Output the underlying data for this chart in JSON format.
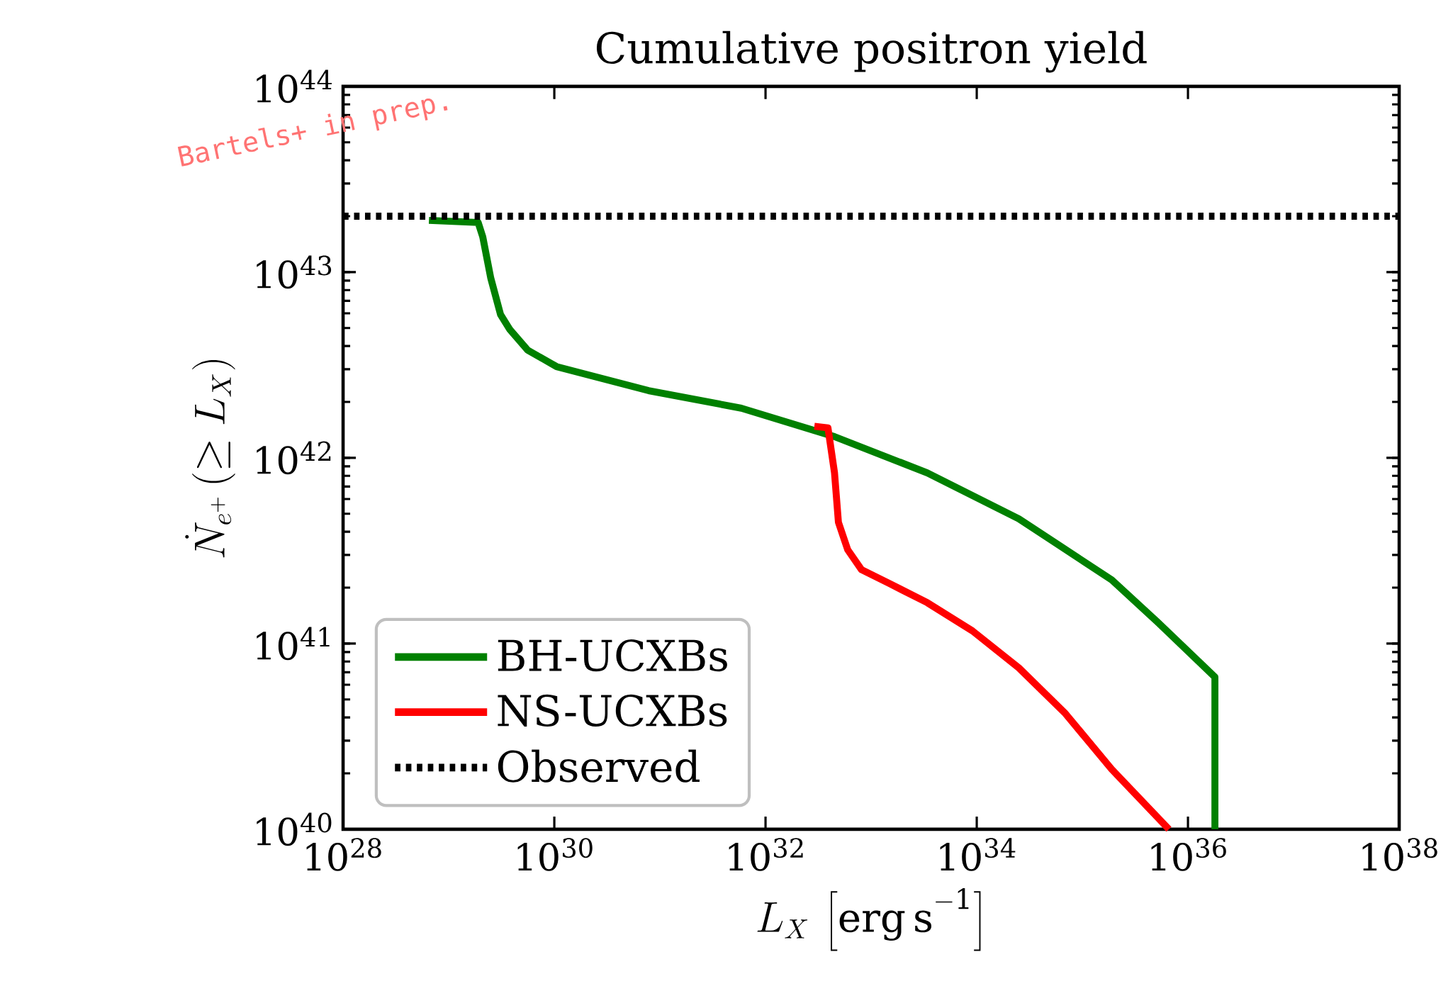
{
  "chart_data": {
    "type": "line",
    "title": "Cumulative positron yield",
    "xlabel": "L_X\\,\\left[\\mathrm{erg\\,s^{-1}}\\right]",
    "ylabel": "\\dot{N}_{e^+}\\,(\\geq L_X)",
    "log": "xy",
    "legend": "bottom left",
    "marker": "none",
    "xlim": [
      1e+28,
      1e+38
    ],
    "ylim": [
      1e+40,
      1e+44
    ],
    "xticks": [
      {
        "value": 1e+28,
        "label": "10$^{28}$"
      },
      {
        "value": 1e+30,
        "label": "10$^{30}$"
      },
      {
        "value": 1e+32,
        "label": "10$^{32}$"
      },
      {
        "value": 1e+34,
        "label": "10$^{34}$"
      },
      {
        "value": 1e+36,
        "label": "10$^{36}$"
      },
      {
        "value": 1e+38,
        "label": "10$^{38}$"
      }
    ],
    "yticks": [
      {
        "value": 1e+40,
        "label": "10$^{40}$"
      },
      {
        "value": 1e+41,
        "label": "10$^{41}$"
      },
      {
        "value": 1e+42,
        "label": "10$^{42}$"
      },
      {
        "value": 1e+43,
        "label": "10$^{43}$"
      },
      {
        "value": 1e+44,
        "label": "10$^{44}$"
      }
    ],
    "annotations": [
      "Bartels+ in prep."
    ],
    "series": [
      {
        "name": "BH-UCXBs",
        "color": "#008000",
        "line_style": "solid",
        "x": [
          6.5e+28,
          1.9e+29,
          2.1e+29,
          2.5e+29,
          3.1e+29,
          3.8e+29,
          5.6e+29,
          1.05e+30,
          7.8e+30,
          5.9e+31,
          4.5e+32,
          3.4e+33,
          2.5e+34,
          1.9e+35,
          5.2e+35,
          1.8e+36,
          1.8e+36
        ],
        "values": [
          1.9e+43,
          1.85e+43,
          1.55e+43,
          9.3e+42,
          5.9e+42,
          4.9e+42,
          3.8e+42,
          3.1e+42,
          2.3e+42,
          1.85e+42,
          1.3e+42,
          8.3e+41,
          4.7e+41,
          2.2e+41,
          1.3e+41,
          6.6e+40,
          1e+40
        ]
      },
      {
        "name": "NS-UCXBs",
        "color": "#ff0000",
        "line_style": "solid",
        "x": [
          2.9e+32,
          3.9e+32,
          4.5e+32,
          4.9e+32,
          6e+32,
          8.1e+32,
          1.5e+33,
          3.4e+33,
          9.1e+33,
          2.5e+34,
          6.9e+34,
          1.9e+35,
          6.6e+35
        ],
        "values": [
          1.48e+42,
          1.45e+42,
          8.3e+41,
          4.5e+41,
          3.2e+41,
          2.5e+41,
          2.1e+41,
          1.66e+41,
          1.17e+41,
          7.4e+40,
          4.2e+40,
          2.1e+40,
          1e+40
        ]
      },
      {
        "name": "Observed",
        "color": "#000000",
        "line_style": "dotted",
        "x": [
          1e+28,
          1e+38
        ],
        "values": [
          2e+43,
          2e+43
        ]
      }
    ]
  }
}
